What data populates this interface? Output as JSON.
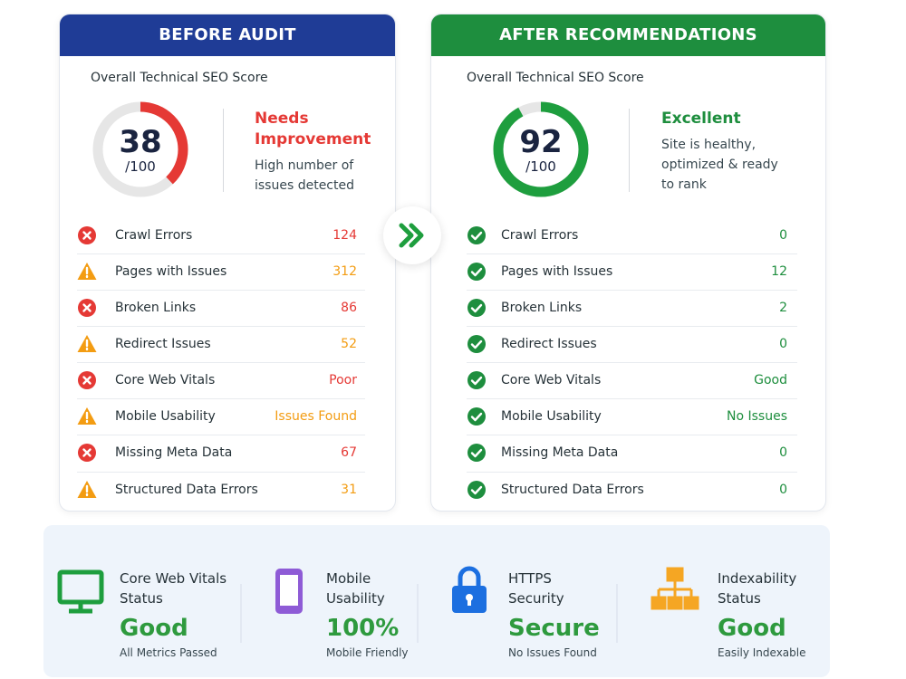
{
  "panels": [
    {
      "header": "BEFORE AUDIT",
      "header_color": "#1f3c96",
      "score_label": "Overall Technical SEO Score",
      "score": 38,
      "score_max": {
        "value": 100,
        "label": "/100"
      },
      "gauge_color": "#e53935",
      "status": "Needs Improvement",
      "status_color": "#e53935",
      "description": "High number of issues detected",
      "items": [
        {
          "label": "Crawl Errors",
          "value": 124,
          "status": "error"
        },
        {
          "label": "Pages with Issues",
          "value": 312,
          "status": "warning"
        },
        {
          "label": "Broken Links",
          "value": 86,
          "status": "error"
        },
        {
          "label": "Redirect Issues",
          "value": 52,
          "status": "warning"
        },
        {
          "label": "Core Web Vitals",
          "value": "Poor",
          "status": "error"
        },
        {
          "label": "Mobile Usability",
          "value": "Issues Found",
          "status": "warning"
        },
        {
          "label": "Missing Meta Data",
          "value": 67,
          "status": "error"
        },
        {
          "label": "Structured Data Errors",
          "value": 31,
          "status": "warning"
        }
      ]
    },
    {
      "header": "AFTER RECOMMENDATIONS",
      "header_color": "#1e8e3e",
      "score_label": "Overall Technical SEO Score",
      "score": 92,
      "score_max": {
        "value": 100,
        "label": "/100"
      },
      "gauge_color": "#1e9e3e",
      "status": "Excellent",
      "status_color": "#1e8e3e",
      "description": "Site is healthy, optimized & ready to rank",
      "items": [
        {
          "label": "Crawl Errors",
          "value": 0,
          "status": "ok"
        },
        {
          "label": "Pages with Issues",
          "value": 12,
          "status": "ok"
        },
        {
          "label": "Broken Links",
          "value": 2,
          "status": "ok"
        },
        {
          "label": "Redirect Issues",
          "value": 0,
          "status": "ok"
        },
        {
          "label": "Core Web Vitals",
          "value": "Good",
          "status": "ok"
        },
        {
          "label": "Mobile Usability",
          "value": "No Issues",
          "status": "ok"
        },
        {
          "label": "Missing Meta Data",
          "value": 0,
          "status": "ok"
        },
        {
          "label": "Structured Data Errors",
          "value": 0,
          "status": "ok"
        }
      ]
    }
  ],
  "highlights": [
    {
      "label": "Core Web Vitals Status",
      "value": "Good",
      "note": "All Metrics Passed"
    },
    {
      "label": "Mobile Usability",
      "value": "100%",
      "note": "Mobile Friendly"
    },
    {
      "label": "HTTPS Security",
      "value": "Secure",
      "note": "No Issues Found"
    },
    {
      "label": "Indexability Status",
      "value": "Good",
      "note": "Easily Indexable"
    }
  ]
}
